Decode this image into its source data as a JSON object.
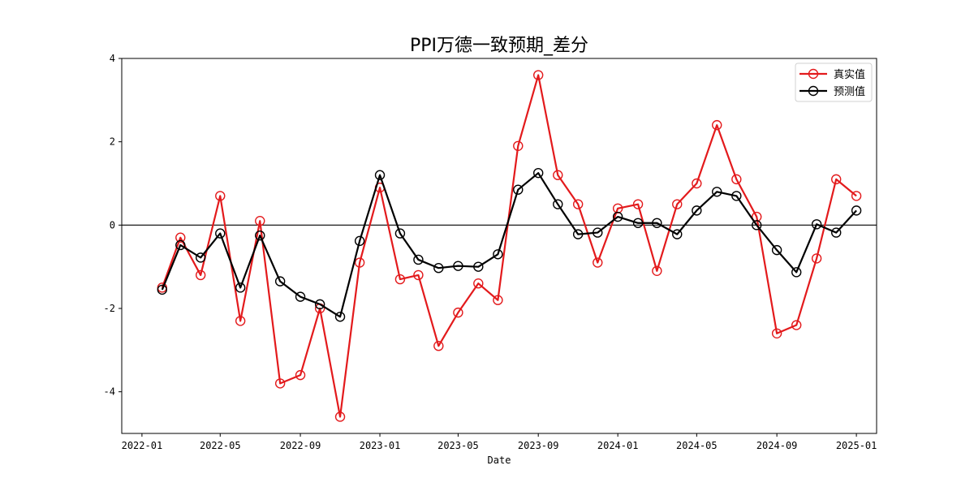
{
  "chart_data": {
    "type": "line",
    "title": "PPI万德一致预期_差分",
    "xlabel": "Date",
    "ylabel": "",
    "x_ticks": [
      "2022-01",
      "2022-05",
      "2022-09",
      "2023-01",
      "2023-05",
      "2023-09",
      "2024-01",
      "2024-05",
      "2024-09",
      "2025-01"
    ],
    "y_ticks": [
      "-4",
      "-2",
      "0",
      "2",
      "4"
    ],
    "ylim": [
      -5,
      4
    ],
    "xlim": [
      "2021-12-01",
      "2025-02-01"
    ],
    "zero_line": true,
    "legend_position": "top-right",
    "x": [
      "2022-02-01",
      "2022-03-01",
      "2022-04-01",
      "2022-05-01",
      "2022-06-01",
      "2022-07-01",
      "2022-08-01",
      "2022-09-01",
      "2022-10-01",
      "2022-11-01",
      "2022-12-01",
      "2023-01-01",
      "2023-02-01",
      "2023-03-01",
      "2023-04-01",
      "2023-05-01",
      "2023-06-01",
      "2023-07-01",
      "2023-08-01",
      "2023-09-01",
      "2023-10-01",
      "2023-11-01",
      "2023-12-01",
      "2024-01-01",
      "2024-02-01",
      "2024-03-01",
      "2024-04-01",
      "2024-05-01",
      "2024-06-01",
      "2024-07-01",
      "2024-08-01",
      "2024-09-01",
      "2024-10-01",
      "2024-11-01",
      "2024-12-01",
      "2025-01-01"
    ],
    "series": [
      {
        "name": "真实值",
        "color": "#e31a1c",
        "values": [
          -1.5,
          -0.3,
          -1.2,
          0.7,
          -2.3,
          0.1,
          -3.8,
          -3.6,
          -2.0,
          -4.6,
          -0.9,
          0.9,
          -1.3,
          -1.2,
          -2.9,
          -2.1,
          -1.4,
          -1.8,
          1.9,
          3.6,
          1.2,
          0.5,
          -0.9,
          0.4,
          0.5,
          -1.1,
          0.5,
          1.0,
          2.4,
          1.1,
          0.2,
          -2.6,
          -2.4,
          -0.8,
          1.1,
          0.7
        ]
      },
      {
        "name": "预测值",
        "color": "#000000",
        "values": [
          -1.55,
          -0.48,
          -0.78,
          -0.2,
          -1.5,
          -0.25,
          -1.35,
          -1.72,
          -1.9,
          -2.2,
          -0.38,
          1.2,
          -0.2,
          -0.83,
          -1.03,
          -0.98,
          -1.0,
          -0.7,
          0.85,
          1.25,
          0.5,
          -0.22,
          -0.18,
          0.2,
          0.05,
          0.05,
          -0.22,
          0.35,
          0.8,
          0.7,
          0.0,
          -0.6,
          -1.13,
          0.02,
          -0.18,
          0.35
        ]
      }
    ]
  }
}
